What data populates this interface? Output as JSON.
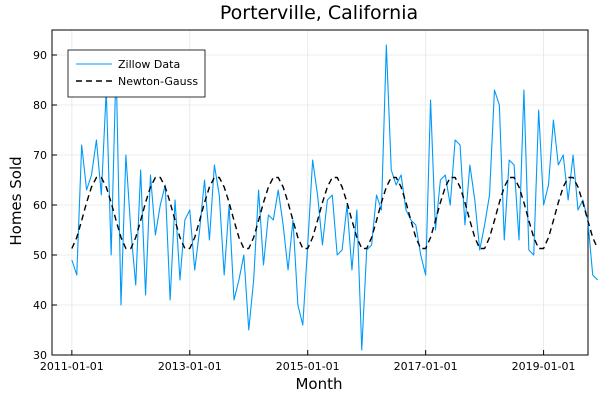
{
  "chart_data": {
    "type": "line",
    "title": "Porterville, California",
    "xlabel": "Month",
    "ylabel": "Homes Sold",
    "x_start": "2011-01",
    "x_step": "1 month",
    "xlim": [
      "2011-01",
      "2019-06"
    ],
    "ylim": [
      30,
      95
    ],
    "x_ticks": [
      "2011-01-01",
      "2013-01-01",
      "2015-01-01",
      "2017-01-01",
      "2019-01-01"
    ],
    "y_ticks": [
      30,
      40,
      50,
      60,
      70,
      80,
      90
    ],
    "grid": true,
    "legend": "top-left",
    "series": [
      {
        "name": "Zillow Data",
        "color": "#009af9",
        "style": "solid",
        "values": [
          49,
          46,
          72,
          63,
          66,
          73,
          62,
          83,
          50,
          88,
          40,
          70,
          55,
          44,
          67,
          42,
          66,
          54,
          60,
          64,
          41,
          61,
          45,
          57,
          59,
          47,
          55,
          65,
          53,
          68,
          62,
          46,
          60,
          41,
          45,
          50,
          35,
          45,
          63,
          48,
          58,
          57,
          63,
          56,
          47,
          57,
          40,
          36,
          52,
          69,
          62,
          52,
          61,
          62,
          50,
          51,
          60,
          47,
          59,
          31,
          51,
          52,
          62,
          59,
          92,
          67,
          64,
          66,
          59,
          57,
          56,
          50,
          46,
          81,
          55,
          65,
          66,
          60,
          73,
          72,
          56,
          68,
          61,
          51,
          56,
          62,
          83,
          80,
          53,
          69,
          68,
          53,
          83,
          51,
          50,
          79,
          60,
          64,
          77,
          68,
          70,
          61,
          70,
          59,
          61,
          57,
          46,
          45
        ]
      },
      {
        "name": "Newton-Gauss",
        "color": "#000000",
        "style": "dashed",
        "values": [
          51.3,
          53.5,
          56.9,
          60.5,
          63.6,
          65.5,
          65.5,
          63.6,
          60.5,
          56.9,
          53.5,
          51.3,
          51.3,
          53.5,
          56.9,
          60.5,
          63.6,
          65.5,
          65.5,
          63.6,
          60.5,
          56.9,
          53.5,
          51.3,
          51.3,
          53.5,
          56.9,
          60.5,
          63.6,
          65.5,
          65.5,
          63.6,
          60.5,
          56.9,
          53.5,
          51.3,
          51.3,
          53.5,
          56.9,
          60.5,
          63.6,
          65.5,
          65.5,
          63.6,
          60.5,
          56.9,
          53.5,
          51.3,
          51.3,
          53.5,
          56.9,
          60.5,
          63.6,
          65.5,
          65.5,
          63.6,
          60.5,
          56.9,
          53.5,
          51.3,
          51.3,
          53.5,
          56.9,
          60.5,
          63.6,
          65.5,
          65.5,
          63.6,
          60.5,
          56.9,
          53.5,
          51.3,
          51.3,
          53.5,
          56.9,
          60.5,
          63.6,
          65.5,
          65.5,
          63.6,
          60.5,
          56.9,
          53.5,
          51.3,
          51.3,
          53.5,
          56.9,
          60.5,
          63.6,
          65.5,
          65.5,
          63.6,
          60.5,
          56.9,
          53.5,
          51.3,
          51.3,
          53.5,
          56.9,
          60.5,
          63.6,
          65.5,
          65.5,
          63.6,
          60.5,
          56.9,
          53.5,
          51.3
        ]
      }
    ]
  }
}
